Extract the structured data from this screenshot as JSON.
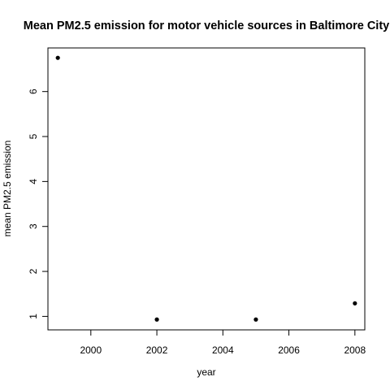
{
  "chart_data": {
    "type": "scatter",
    "title": "Mean PM2.5 emission for motor vehicle sources in Baltimore City",
    "xlabel": "year",
    "ylabel": "mean PM2.5 emission",
    "xlim": [
      1998.7,
      2008.3
    ],
    "ylim": [
      0.7,
      6.97
    ],
    "xticks": [
      2000,
      2002,
      2004,
      2006,
      2008
    ],
    "yticks": [
      1,
      2,
      3,
      4,
      5,
      6
    ],
    "grid": false,
    "points": [
      {
        "x": 1999,
        "y": 6.75
      },
      {
        "x": 2002,
        "y": 0.93
      },
      {
        "x": 2005,
        "y": 0.93
      },
      {
        "x": 2008,
        "y": 1.29
      }
    ]
  }
}
